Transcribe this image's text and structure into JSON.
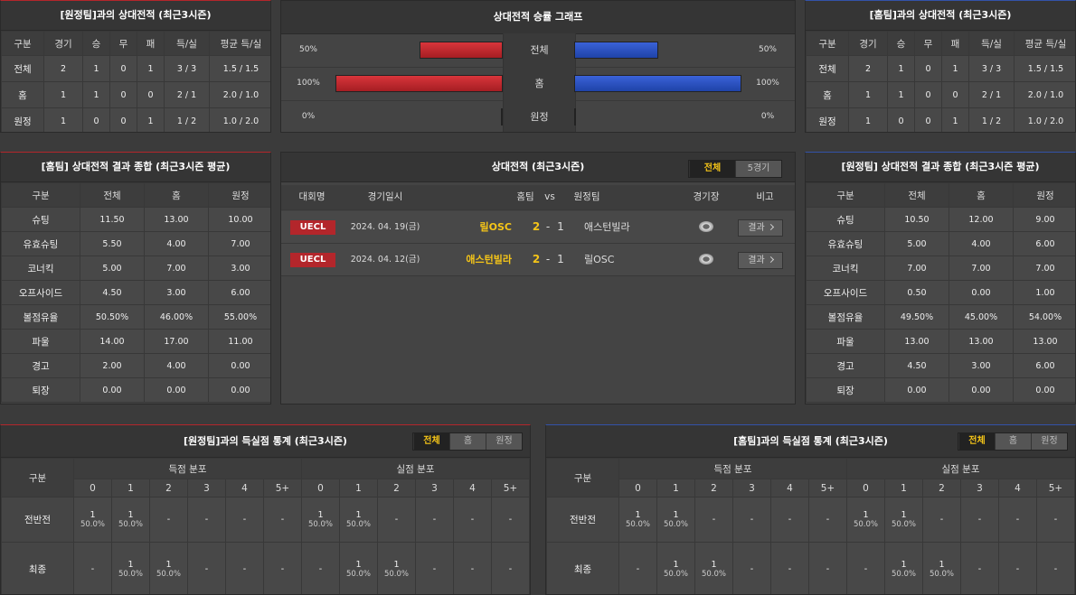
{
  "away_h2h": {
    "title": "[원정팀]과의 상대전적 (최근3시즌)",
    "columns": [
      "구분",
      "경기",
      "승",
      "무",
      "패",
      "득/실",
      "평균 득/실"
    ],
    "rows": [
      [
        "전체",
        "2",
        "1",
        "0",
        "1",
        "3 / 3",
        "1.5 / 1.5"
      ],
      [
        "홈",
        "1",
        "1",
        "0",
        "0",
        "2 / 1",
        "2.0 / 1.0"
      ],
      [
        "원정",
        "1",
        "0",
        "0",
        "1",
        "1 / 2",
        "1.0 / 2.0"
      ]
    ]
  },
  "win_rate_graph": {
    "title": "상대전적 승률 그래프",
    "rows": [
      {
        "label": "전체",
        "left": {
          "value": 50,
          "label": "50%"
        },
        "right": {
          "value": 50,
          "label": "50%"
        }
      },
      {
        "label": "홈",
        "left": {
          "value": 100,
          "label": "100%"
        },
        "right": {
          "value": 100,
          "label": "100%"
        }
      },
      {
        "label": "원정",
        "left": {
          "value": 0,
          "label": "0%"
        },
        "right": {
          "value": 0,
          "label": "0%"
        }
      }
    ]
  },
  "home_h2h": {
    "title": "[홈팀]과의 상대전적 (최근3시즌)",
    "columns": [
      "구분",
      "경기",
      "승",
      "무",
      "패",
      "득/실",
      "평균 득/실"
    ],
    "rows": [
      [
        "전체",
        "2",
        "1",
        "0",
        "1",
        "3 / 3",
        "1.5 / 1.5"
      ],
      [
        "홈",
        "1",
        "1",
        "0",
        "0",
        "2 / 1",
        "2.0 / 1.0"
      ],
      [
        "원정",
        "1",
        "0",
        "0",
        "1",
        "1 / 2",
        "1.0 / 2.0"
      ]
    ]
  },
  "home_summary": {
    "title": "[홈팀] 상대전적 결과 종합 (최근3시즌 평균)",
    "columns": [
      "구분",
      "전체",
      "홈",
      "원정"
    ],
    "rows": [
      [
        "슈팅",
        "11.50",
        "13.00",
        "10.00"
      ],
      [
        "유효슈팅",
        "5.50",
        "4.00",
        "7.00"
      ],
      [
        "코너킥",
        "5.00",
        "7.00",
        "3.00"
      ],
      [
        "오프사이드",
        "4.50",
        "3.00",
        "6.00"
      ],
      [
        "볼점유율",
        "50.50%",
        "46.00%",
        "55.00%"
      ],
      [
        "파울",
        "14.00",
        "17.00",
        "11.00"
      ],
      [
        "경고",
        "2.00",
        "4.00",
        "0.00"
      ],
      [
        "퇴장",
        "0.00",
        "0.00",
        "0.00"
      ]
    ]
  },
  "h2h_matches": {
    "title": "상대전적 (최근3시즌)",
    "tabs": [
      "전체",
      "5경기"
    ],
    "columns": [
      "대회명",
      "경기일시",
      "홈팀",
      "vs",
      "원정팀",
      "경기장",
      "비고"
    ],
    "rows": [
      {
        "league": "UECL",
        "date": "2024. 04. 19(금)",
        "home": "릴OSC",
        "home_score": 2,
        "separator": "-",
        "away_score": 1,
        "away": "애스턴빌라",
        "result": "결과"
      },
      {
        "league": "UECL",
        "date": "2024. 04. 12(금)",
        "home": "애스턴빌라",
        "home_score": 2,
        "separator": "-",
        "away_score": 1,
        "away": "릴OSC",
        "result": "결과"
      }
    ]
  },
  "away_summary": {
    "title": "[원정팀] 상대전적 결과 종합 (최근3시즌 평균)",
    "columns": [
      "구분",
      "전체",
      "홈",
      "원정"
    ],
    "rows": [
      [
        "슈팅",
        "10.50",
        "12.00",
        "9.00"
      ],
      [
        "유효슈팅",
        "5.00",
        "4.00",
        "6.00"
      ],
      [
        "코너킥",
        "7.00",
        "7.00",
        "7.00"
      ],
      [
        "오프사이드",
        "0.50",
        "0.00",
        "1.00"
      ],
      [
        "볼점유율",
        "49.50%",
        "45.00%",
        "54.00%"
      ],
      [
        "파울",
        "13.00",
        "13.00",
        "13.00"
      ],
      [
        "경고",
        "4.50",
        "3.00",
        "6.00"
      ],
      [
        "퇴장",
        "0.00",
        "0.00",
        "0.00"
      ]
    ]
  },
  "goal_stats_away": {
    "title": "[원정팀]과의 득실점 통계 (최근3시즌)",
    "tabs": [
      "전체",
      "홈",
      "원정"
    ],
    "row_header": "구분",
    "groups": [
      "득점 분포",
      "실점 분포"
    ],
    "buckets": [
      "0",
      "1",
      "2",
      "3",
      "4",
      "5+"
    ],
    "rows": [
      {
        "label": "전반전",
        "cells": [
          {
            "count": "1",
            "pct": "50.0%"
          },
          {
            "count": "1",
            "pct": "50.0%"
          },
          "-",
          "-",
          "-",
          "-",
          {
            "count": "1",
            "pct": "50.0%"
          },
          {
            "count": "1",
            "pct": "50.0%"
          },
          "-",
          "-",
          "-",
          "-"
        ]
      },
      {
        "label": "최종",
        "cells": [
          "-",
          {
            "count": "1",
            "pct": "50.0%"
          },
          {
            "count": "1",
            "pct": "50.0%"
          },
          "-",
          "-",
          "-",
          "-",
          {
            "count": "1",
            "pct": "50.0%"
          },
          {
            "count": "1",
            "pct": "50.0%"
          },
          "-",
          "-",
          "-"
        ]
      }
    ]
  },
  "goal_stats_home": {
    "title": "[홈팀]과의 득실점 통계 (최근3시즌)",
    "tabs": [
      "전체",
      "홈",
      "원정"
    ],
    "row_header": "구분",
    "groups": [
      "득점 분포",
      "실점 분포"
    ],
    "buckets": [
      "0",
      "1",
      "2",
      "3",
      "4",
      "5+"
    ],
    "rows": [
      {
        "label": "전반전",
        "cells": [
          {
            "count": "1",
            "pct": "50.0%"
          },
          {
            "count": "1",
            "pct": "50.0%"
          },
          "-",
          "-",
          "-",
          "-",
          {
            "count": "1",
            "pct": "50.0%"
          },
          {
            "count": "1",
            "pct": "50.0%"
          },
          "-",
          "-",
          "-",
          "-"
        ]
      },
      {
        "label": "최종",
        "cells": [
          "-",
          {
            "count": "1",
            "pct": "50.0%"
          },
          {
            "count": "1",
            "pct": "50.0%"
          },
          "-",
          "-",
          "-",
          "-",
          {
            "count": "1",
            "pct": "50.0%"
          },
          {
            "count": "1",
            "pct": "50.0%"
          },
          "-",
          "-",
          "-"
        ]
      }
    ]
  }
}
